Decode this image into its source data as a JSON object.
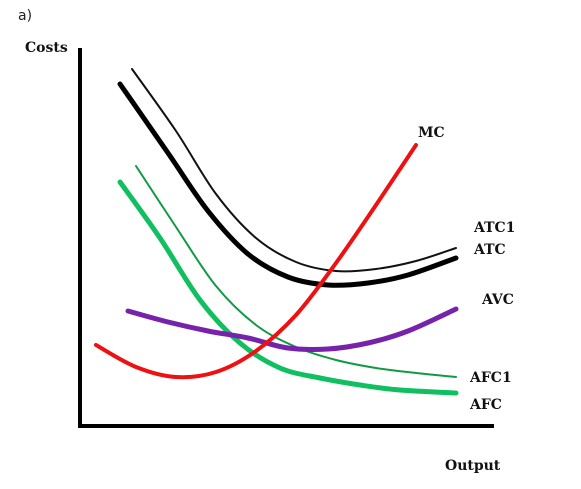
{
  "panel_label": "a)",
  "chart_data": {
    "type": "line",
    "title": "",
    "ylabel": "Costs",
    "xlabel": "Output",
    "grid": false,
    "legend": "labels at curve ends",
    "colors": {
      "MC": "#ee1111",
      "ATC1": "#111111",
      "ATC": "#000000",
      "AVC": "#7722aa",
      "AFC1": "#119944",
      "AFC": "#10c060",
      "axes": "#000000"
    },
    "series": [
      {
        "name": "MC",
        "x": [
          0.4,
          1.4,
          2.4,
          3.4,
          4.4,
          5.4,
          6.4,
          7.4,
          8.4
        ],
        "y": [
          8.1,
          5.9,
          4.9,
          5.4,
          7.5,
          11.1,
          16.3,
          22.1,
          28.1
        ]
      },
      {
        "name": "ATC1",
        "x": [
          1.3,
          2.4,
          3.4,
          4.4,
          5.4,
          6.4,
          7.4,
          8.4,
          9.4
        ],
        "y": [
          35.7,
          29.5,
          23.2,
          18.8,
          16.4,
          15.5,
          15.7,
          16.5,
          17.8
        ]
      },
      {
        "name": "ATC",
        "x": [
          1.0,
          2.2,
          3.2,
          4.2,
          5.2,
          6.2,
          7.2,
          8.2,
          9.4
        ],
        "y": [
          34.2,
          27.3,
          21.5,
          17.2,
          14.9,
          14.1,
          14.3,
          15.1,
          16.8
        ]
      },
      {
        "name": "AVC",
        "x": [
          1.2,
          2.2,
          3.2,
          4.2,
          5.2,
          6.2,
          7.2,
          8.2,
          9.4
        ],
        "y": [
          11.5,
          10.4,
          9.5,
          8.8,
          7.8,
          7.7,
          8.3,
          9.5,
          11.7
        ]
      },
      {
        "name": "AFC1",
        "x": [
          1.4,
          2.4,
          3.4,
          4.4,
          5.4,
          6.4,
          7.4,
          8.4,
          9.4
        ],
        "y": [
          26.0,
          19.9,
          14.0,
          10.1,
          7.9,
          6.6,
          5.8,
          5.3,
          4.9
        ]
      },
      {
        "name": "AFC",
        "x": [
          1.0,
          2.0,
          3.0,
          4.0,
          5.0,
          6.0,
          7.0,
          8.0,
          9.4
        ],
        "y": [
          24.4,
          18.8,
          12.6,
          8.3,
          5.8,
          4.8,
          4.1,
          3.6,
          3.3
        ]
      }
    ]
  }
}
